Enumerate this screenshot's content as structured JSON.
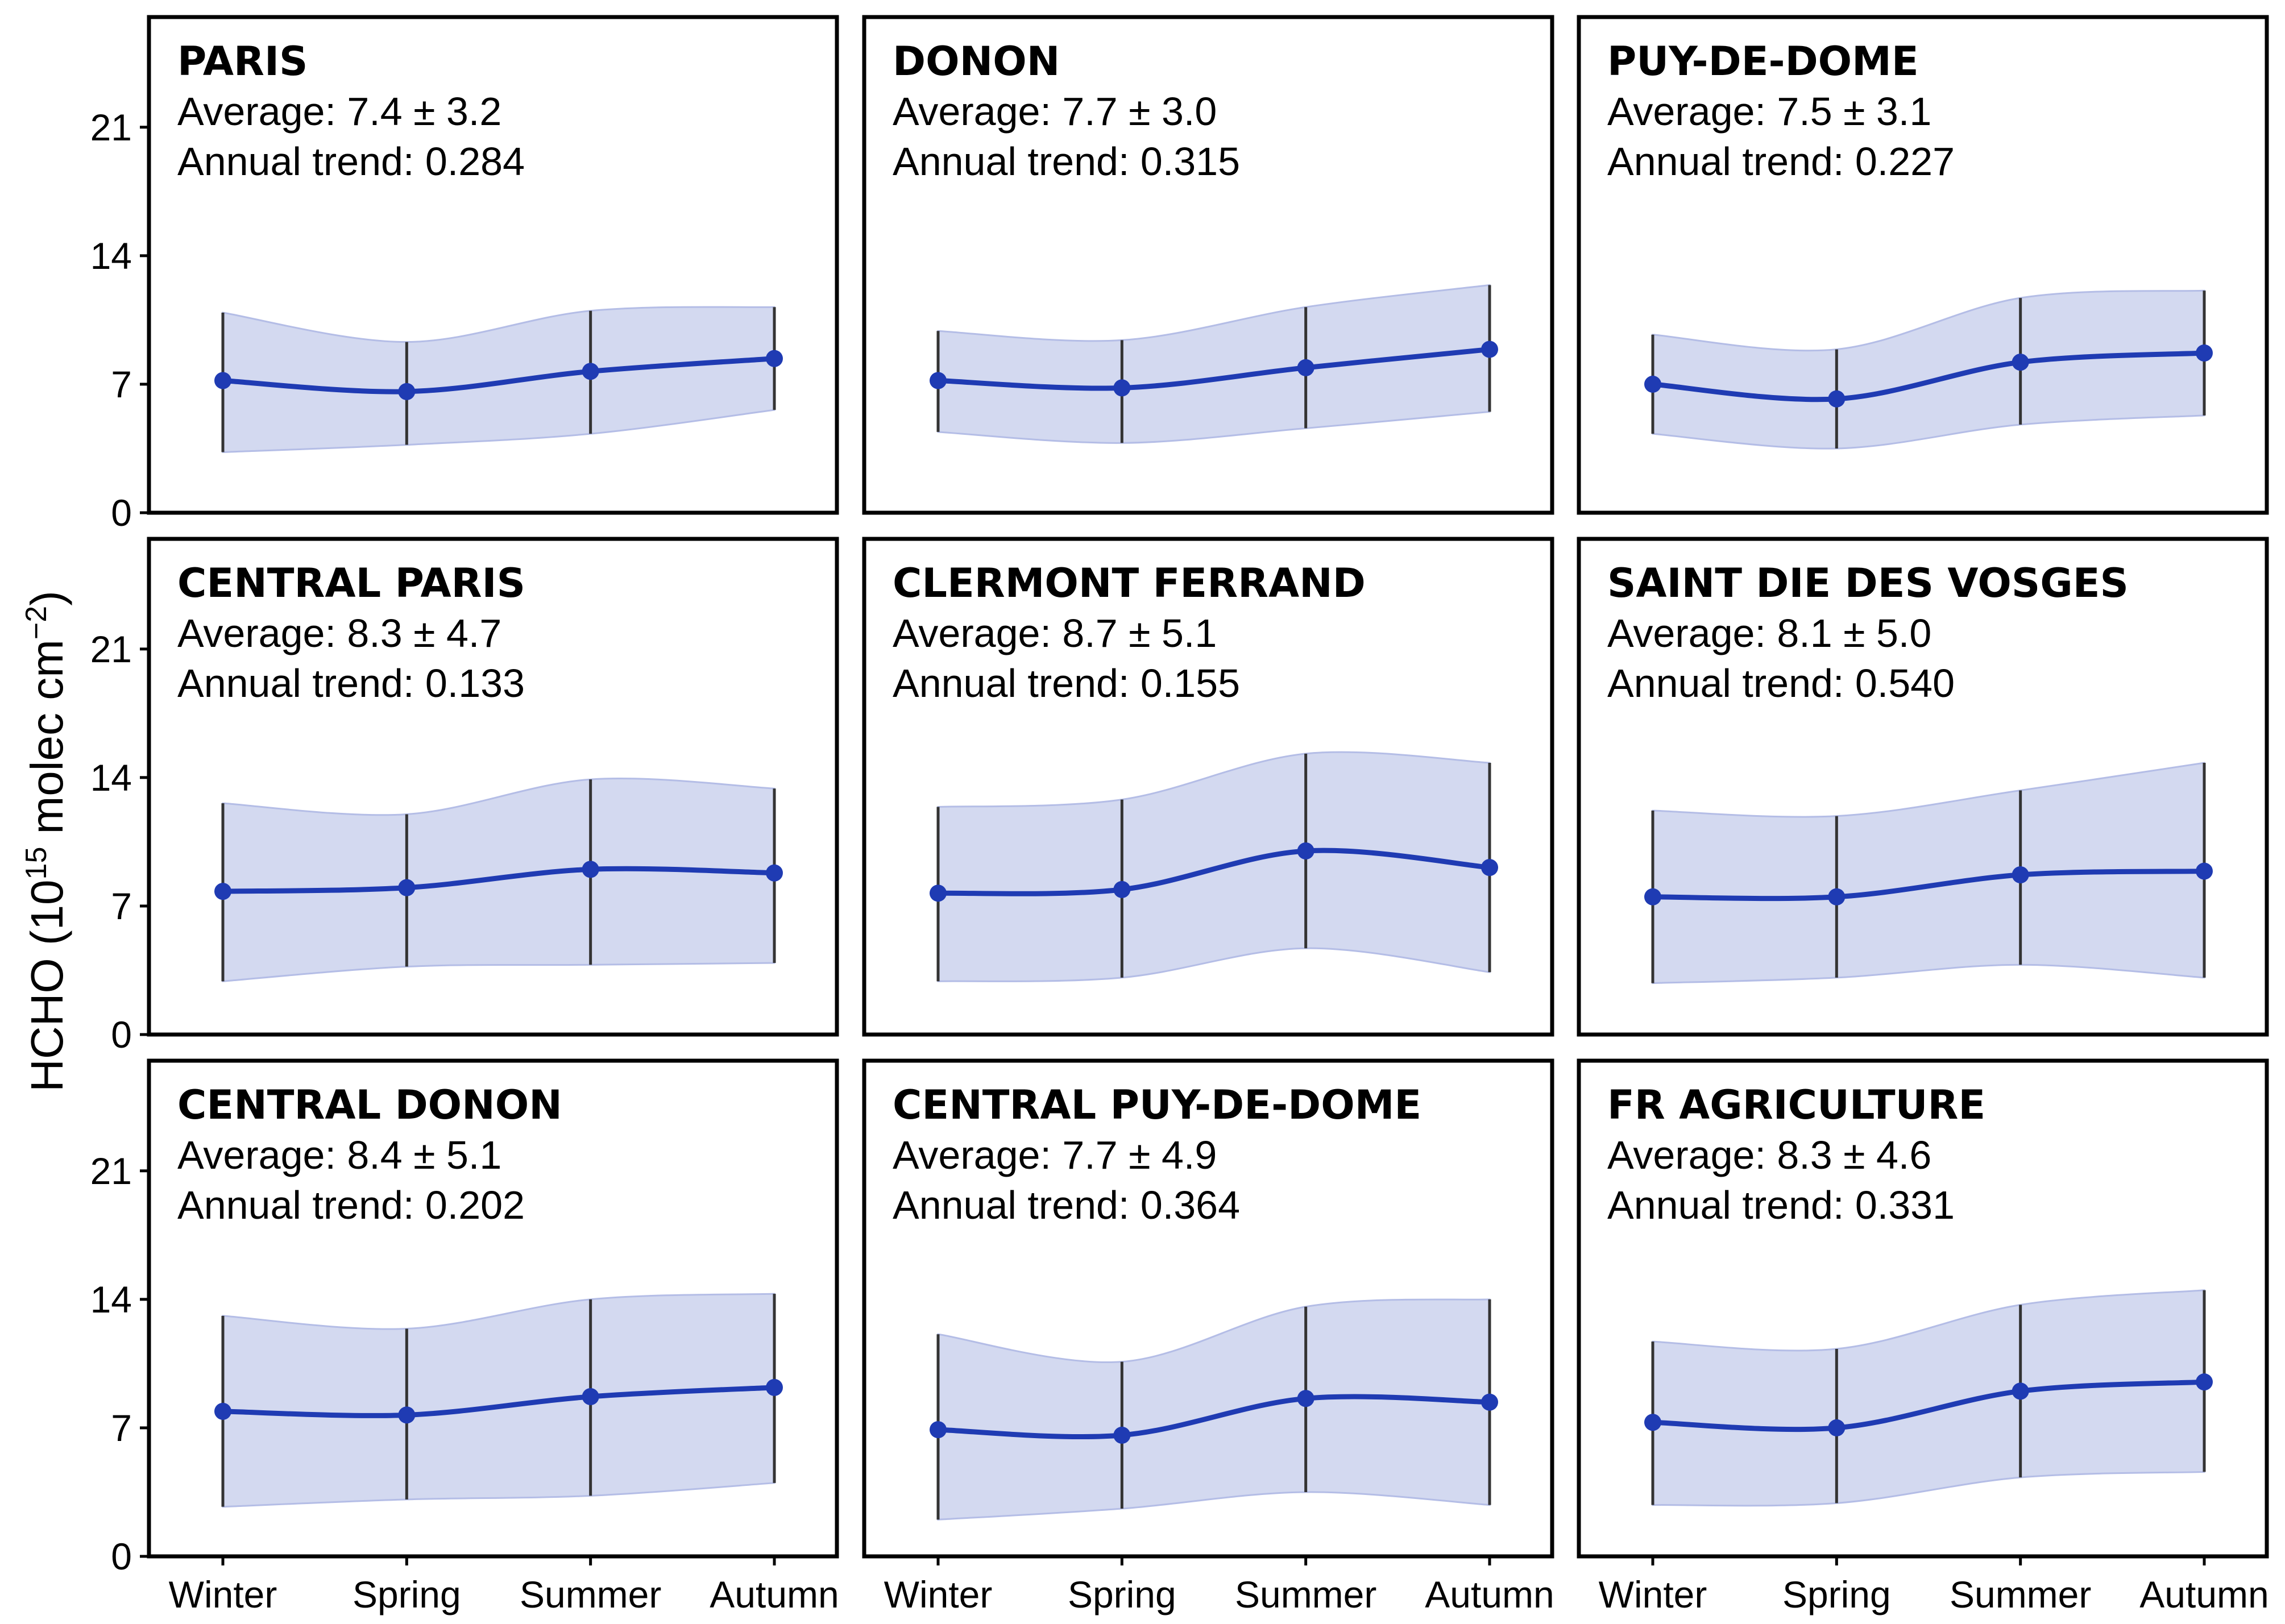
{
  "chart_data": {
    "type": "line",
    "ylabel": "HCHO (10^15 molec cm^-2)",
    "ylabel_parts": {
      "base": "HCHO (10",
      "exp1": "15",
      "mid": " molec cm",
      "exp2": "−2",
      "end": ")"
    },
    "categories": [
      "Winter",
      "Spring",
      "Summer",
      "Autumn"
    ],
    "ylim": [
      0,
      27
    ],
    "yticks": [
      0,
      7,
      14,
      21
    ],
    "grid": false,
    "line_color": "#1f3bb3",
    "band_color": "#d3d9f0",
    "errorbar_color": "#333333",
    "panels": [
      {
        "title": "PARIS",
        "average": "Average: 7.4 ± 3.2",
        "trend": "Annual trend: 0.284",
        "series": [
          {
            "values": [
              7.2,
              6.6,
              7.7,
              8.4
            ],
            "lower": [
              3.3,
              3.7,
              4.3,
              5.6
            ],
            "upper": [
              10.9,
              9.3,
              11.0,
              11.2
            ]
          }
        ]
      },
      {
        "title": "DONON",
        "average": "Average: 7.7 ± 3.0",
        "trend": "Annual trend: 0.315",
        "series": [
          {
            "values": [
              7.2,
              6.8,
              7.9,
              8.9
            ],
            "lower": [
              4.4,
              3.8,
              4.6,
              5.5
            ],
            "upper": [
              9.9,
              9.4,
              11.2,
              12.4
            ]
          }
        ]
      },
      {
        "title": "PUY-DE-DOME",
        "average": "Average: 7.5 ± 3.1",
        "trend": "Annual trend: 0.227",
        "series": [
          {
            "values": [
              7.0,
              6.2,
              8.2,
              8.7
            ],
            "lower": [
              4.3,
              3.5,
              4.8,
              5.3
            ],
            "upper": [
              9.7,
              8.9,
              11.7,
              12.1
            ]
          }
        ]
      },
      {
        "title": "CENTRAL PARIS",
        "average": "Average: 8.3 ± 4.7",
        "trend": "Annual trend: 0.133",
        "series": [
          {
            "values": [
              7.8,
              8.0,
              9.0,
              8.8
            ],
            "lower": [
              2.9,
              3.7,
              3.8,
              3.9
            ],
            "upper": [
              12.6,
              12.0,
              13.9,
              13.4
            ]
          }
        ]
      },
      {
        "title": "CLERMONT FERRAND",
        "average": "Average: 8.7 ± 5.1",
        "trend": "Annual trend: 0.155",
        "series": [
          {
            "values": [
              7.7,
              7.9,
              10.0,
              9.1
            ],
            "lower": [
              2.9,
              3.1,
              4.7,
              3.4
            ],
            "upper": [
              12.4,
              12.8,
              15.3,
              14.8
            ]
          }
        ]
      },
      {
        "title": "SAINT DIE DES VOSGES",
        "average": "Average: 8.1 ± 5.0",
        "trend": "Annual trend: 0.540",
        "series": [
          {
            "values": [
              7.5,
              7.5,
              8.7,
              8.9
            ],
            "lower": [
              2.8,
              3.1,
              3.8,
              3.1
            ],
            "upper": [
              12.2,
              11.9,
              13.3,
              14.8
            ]
          }
        ]
      },
      {
        "title": "CENTRAL DONON",
        "average": "Average: 8.4 ± 5.1",
        "trend": "Annual trend: 0.202",
        "series": [
          {
            "values": [
              7.9,
              7.7,
              8.7,
              9.2
            ],
            "lower": [
              2.7,
              3.1,
              3.3,
              4.0
            ],
            "upper": [
              13.1,
              12.4,
              14.0,
              14.3
            ]
          }
        ]
      },
      {
        "title": "CENTRAL PUY-DE-DOME",
        "average": "Average: 7.7 ± 4.9",
        "trend": "Annual trend: 0.364",
        "series": [
          {
            "values": [
              6.9,
              6.6,
              8.6,
              8.4
            ],
            "lower": [
              2.0,
              2.6,
              3.5,
              2.8
            ],
            "upper": [
              12.1,
              10.6,
              13.6,
              14.0
            ]
          }
        ]
      },
      {
        "title": "FR AGRICULTURE",
        "average": "Average: 8.3 ± 4.6",
        "trend": "Annual trend: 0.331",
        "series": [
          {
            "values": [
              7.3,
              7.0,
              9.0,
              9.5
            ],
            "lower": [
              2.8,
              2.9,
              4.3,
              4.6
            ],
            "upper": [
              11.7,
              11.3,
              13.7,
              14.5
            ]
          }
        ]
      }
    ]
  }
}
